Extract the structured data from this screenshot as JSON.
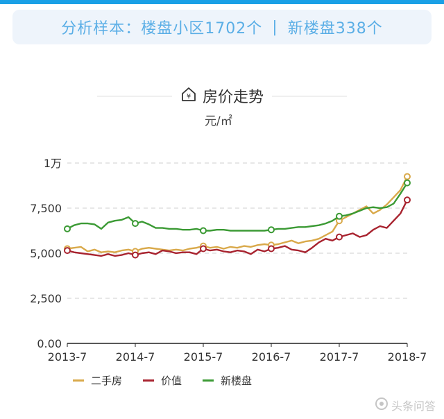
{
  "banner": {
    "left": "分析样本：楼盘小区1702个",
    "separator": "|",
    "right": "新楼盘338个"
  },
  "chart_data": {
    "type": "line",
    "title": "房价走势",
    "unit": "元/㎡",
    "xlabel": "",
    "ylabel": "",
    "x_ticks": [
      "2013-7",
      "2014-7",
      "2015-7",
      "2016-7",
      "2017-7",
      "2018-7"
    ],
    "y_ticks": [
      {
        "value": 0,
        "label": "0.00"
      },
      {
        "value": 2500,
        "label": "2,500"
      },
      {
        "value": 5000,
        "label": "5,000"
      },
      {
        "value": 7500,
        "label": "7,500"
      },
      {
        "value": 10000,
        "label": "1万"
      }
    ],
    "ylim": [
      0,
      10000
    ],
    "xlim": [
      2013.5,
      2018.5
    ],
    "grid": true,
    "legend_position": "bottom-left",
    "series": [
      {
        "name": "二手房",
        "color": "#d9a94a",
        "marker_x": [
          2013.5,
          2014.5,
          2015.5,
          2016.5,
          2017.5,
          2018.5
        ],
        "x": [
          2013.5,
          2013.6,
          2013.7,
          2013.8,
          2013.9,
          2014.0,
          2014.1,
          2014.2,
          2014.3,
          2014.4,
          2014.5,
          2014.6,
          2014.7,
          2014.8,
          2014.9,
          2015.0,
          2015.1,
          2015.2,
          2015.3,
          2015.4,
          2015.5,
          2015.6,
          2015.7,
          2015.8,
          2015.9,
          2016.0,
          2016.1,
          2016.2,
          2016.3,
          2016.4,
          2016.5,
          2016.6,
          2016.7,
          2016.8,
          2016.9,
          2017.0,
          2017.1,
          2017.2,
          2017.3,
          2017.4,
          2017.5,
          2017.6,
          2017.7,
          2017.8,
          2017.9,
          2018.0,
          2018.1,
          2018.2,
          2018.3,
          2018.4,
          2018.5
        ],
        "y": [
          5250,
          5300,
          5350,
          5100,
          5200,
          5050,
          5100,
          5050,
          5150,
          5200,
          5100,
          5250,
          5300,
          5250,
          5200,
          5150,
          5200,
          5150,
          5250,
          5300,
          5400,
          5300,
          5350,
          5250,
          5350,
          5300,
          5400,
          5350,
          5450,
          5500,
          5450,
          5500,
          5600,
          5700,
          5550,
          5650,
          5700,
          5800,
          6000,
          6200,
          6800,
          7000,
          7200,
          7400,
          7600,
          7200,
          7400,
          7700,
          8100,
          8500,
          9250
        ]
      },
      {
        "name": "价值",
        "color": "#a8232f",
        "marker_x": [
          2013.5,
          2014.5,
          2015.5,
          2016.5,
          2017.5,
          2018.5
        ],
        "x": [
          2013.5,
          2013.6,
          2013.7,
          2013.8,
          2013.9,
          2014.0,
          2014.1,
          2014.2,
          2014.3,
          2014.4,
          2014.5,
          2014.6,
          2014.7,
          2014.8,
          2014.9,
          2015.0,
          2015.1,
          2015.2,
          2015.3,
          2015.4,
          2015.5,
          2015.6,
          2015.7,
          2015.8,
          2015.9,
          2016.0,
          2016.1,
          2016.2,
          2016.3,
          2016.4,
          2016.5,
          2016.6,
          2016.7,
          2016.8,
          2016.9,
          2017.0,
          2017.1,
          2017.2,
          2017.3,
          2017.4,
          2017.5,
          2017.6,
          2017.7,
          2017.8,
          2017.9,
          2018.0,
          2018.1,
          2018.2,
          2018.3,
          2018.4,
          2018.5
        ],
        "y": [
          5150,
          5050,
          5000,
          4950,
          4900,
          4850,
          4950,
          4850,
          4900,
          5000,
          4900,
          5000,
          5050,
          4950,
          5150,
          5100,
          5000,
          5050,
          5050,
          4950,
          5250,
          5150,
          5200,
          5100,
          5050,
          5150,
          5100,
          4950,
          5200,
          5100,
          5250,
          5300,
          5400,
          5200,
          5150,
          5050,
          5300,
          5600,
          5800,
          5700,
          5900,
          6000,
          6100,
          5900,
          6000,
          6300,
          6500,
          6400,
          6800,
          7200,
          7950
        ]
      },
      {
        "name": "新楼盘",
        "color": "#3b9a34",
        "marker_x": [
          2013.5,
          2014.5,
          2015.5,
          2016.5,
          2017.5,
          2018.5
        ],
        "x": [
          2013.5,
          2013.6,
          2013.7,
          2013.8,
          2013.9,
          2014.0,
          2014.1,
          2014.2,
          2014.3,
          2014.4,
          2014.5,
          2014.6,
          2014.7,
          2014.8,
          2014.9,
          2015.0,
          2015.1,
          2015.2,
          2015.3,
          2015.4,
          2015.5,
          2015.6,
          2015.7,
          2015.8,
          2015.9,
          2016.0,
          2016.1,
          2016.2,
          2016.3,
          2016.4,
          2016.5,
          2016.6,
          2016.7,
          2016.8,
          2016.9,
          2017.0,
          2017.1,
          2017.2,
          2017.3,
          2017.4,
          2017.5,
          2017.6,
          2017.7,
          2017.8,
          2017.9,
          2018.0,
          2018.1,
          2018.2,
          2018.3,
          2018.4,
          2018.5
        ],
        "y": [
          6350,
          6550,
          6650,
          6650,
          6600,
          6350,
          6700,
          6800,
          6850,
          7000,
          6650,
          6750,
          6600,
          6400,
          6400,
          6350,
          6350,
          6300,
          6300,
          6350,
          6250,
          6250,
          6300,
          6300,
          6250,
          6250,
          6250,
          6250,
          6250,
          6250,
          6300,
          6350,
          6350,
          6400,
          6450,
          6450,
          6500,
          6550,
          6650,
          6800,
          7050,
          7100,
          7200,
          7350,
          7500,
          7550,
          7500,
          7550,
          7750,
          8300,
          8900
        ]
      }
    ]
  },
  "watermark": "头条问答"
}
